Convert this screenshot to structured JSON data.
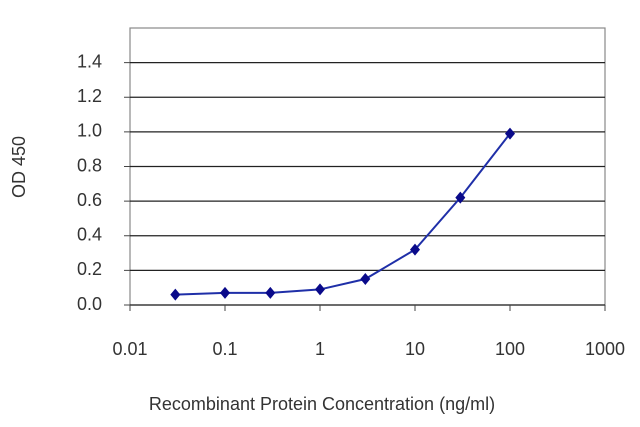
{
  "chart_data": {
    "type": "line",
    "x_label": "Recombinant Protein Concentration (ng/ml)",
    "y_label": "OD 450",
    "x": [
      0.03,
      0.1,
      0.3,
      1,
      3,
      10,
      30,
      100
    ],
    "series": [
      {
        "name": "OD 450",
        "color": "#1f2fa8",
        "marker_color": "#0a0a8a",
        "values": [
          0.06,
          0.07,
          0.07,
          0.09,
          0.15,
          0.32,
          0.62,
          0.99
        ]
      }
    ],
    "xscale": "log",
    "xlim": [
      0.01,
      1000
    ],
    "xticks": [
      0.01,
      0.1,
      1,
      10,
      100,
      1000
    ],
    "ylim": [
      0,
      1.6
    ],
    "yticks": [
      {
        "value": 0,
        "label": "0.0"
      },
      0.2,
      0.4,
      0.6,
      0.8,
      {
        "value": 1,
        "label": "1.0"
      },
      1.2,
      1.4
    ],
    "grid": true
  }
}
